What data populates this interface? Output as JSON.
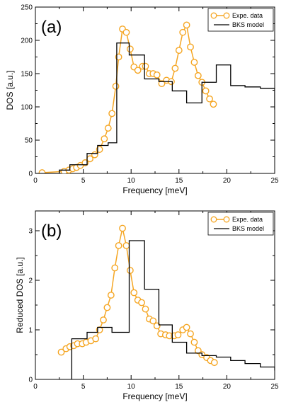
{
  "colors": {
    "expe": "#f5a623",
    "bks": "#000000"
  },
  "chart_data": [
    {
      "type": "line",
      "panel_label": "(a)",
      "xlabel": "Frequency [meV]",
      "ylabel": "DOS [a.u.]",
      "xlim": [
        0,
        25
      ],
      "ylim": [
        0,
        250
      ],
      "xticks": [
        0,
        5,
        10,
        15,
        20,
        25
      ],
      "yticks": [
        0,
        50,
        100,
        150,
        200,
        250
      ],
      "legend": {
        "position": "top-right",
        "entries": [
          "Expe. data",
          "BKS model"
        ]
      },
      "series": [
        {
          "name": "Expe. data",
          "style": "line-circles",
          "x": [
            0.7,
            3.0,
            3.5,
            3.9,
            4.3,
            4.7,
            5.2,
            5.7,
            6.2,
            6.7,
            7.2,
            7.6,
            8.0,
            8.4,
            8.7,
            9.1,
            9.5,
            9.9,
            10.3,
            10.7,
            11.2,
            11.5,
            11.9,
            12.3,
            12.7,
            13.2,
            13.7,
            14.2,
            14.6,
            15.0,
            15.4,
            15.8,
            16.2,
            16.6,
            17.0,
            17.4,
            17.8,
            18.2,
            18.6
          ],
          "y": [
            1,
            3,
            5,
            7,
            9,
            12,
            16,
            22,
            28,
            36,
            52,
            68,
            90,
            131,
            175,
            217,
            212,
            187,
            160,
            155,
            161,
            161,
            150,
            150,
            148,
            135,
            140,
            138,
            158,
            185,
            212,
            223,
            190,
            167,
            147,
            137,
            124,
            112,
            104
          ]
        },
        {
          "name": "BKS model",
          "style": "step",
          "edges": [
            0,
            2.5,
            3.6,
            5.4,
            6.5,
            7.6,
            8.5,
            9.8,
            11.4,
            12.9,
            14.3,
            15.8,
            17.4,
            18.9,
            20.4,
            21.9,
            23.5,
            25
          ],
          "values": [
            0,
            5,
            13,
            30,
            42,
            46,
            196,
            178,
            142,
            138,
            124,
            106,
            137,
            163,
            132,
            130,
            128,
            96
          ]
        }
      ]
    },
    {
      "type": "line",
      "panel_label": "(b)",
      "xlabel": "Frequency [meV]",
      "ylabel": "Reduced DOS [a.u.]",
      "xlim": [
        0,
        25
      ],
      "ylim": [
        0,
        3.4
      ],
      "xticks": [
        0,
        5,
        10,
        15,
        20,
        25
      ],
      "yticks": [
        0,
        1,
        2,
        3
      ],
      "legend": {
        "position": "top-right",
        "entries": [
          "Expe. data",
          "BKS model"
        ]
      },
      "series": [
        {
          "name": "Expe. data",
          "style": "line-circles",
          "x": [
            2.7,
            3.2,
            3.6,
            4.0,
            4.4,
            4.9,
            5.3,
            5.8,
            6.3,
            6.7,
            7.1,
            7.5,
            7.9,
            8.3,
            8.7,
            9.1,
            9.5,
            9.9,
            10.3,
            10.7,
            11.1,
            11.5,
            11.9,
            12.3,
            12.7,
            13.1,
            13.6,
            14.0,
            14.5,
            14.9,
            15.4,
            15.8,
            16.2,
            16.6,
            17.0,
            17.4,
            17.9,
            18.3,
            18.7
          ],
          "y": [
            0.55,
            0.62,
            0.66,
            0.68,
            0.72,
            0.72,
            0.75,
            0.78,
            0.82,
            1.0,
            1.2,
            1.45,
            1.7,
            2.25,
            2.7,
            3.05,
            2.7,
            2.2,
            1.75,
            1.6,
            1.55,
            1.42,
            1.22,
            1.18,
            1.08,
            0.92,
            0.9,
            0.88,
            0.88,
            0.9,
            1.0,
            1.05,
            0.92,
            0.75,
            0.58,
            0.5,
            0.44,
            0.38,
            0.34
          ]
        },
        {
          "name": "BKS model",
          "style": "step",
          "edges": [
            3.8,
            5.4,
            6.5,
            8.0,
            9.8,
            11.4,
            12.9,
            14.3,
            15.8,
            17.4,
            18.9,
            20.4,
            21.9,
            23.5,
            25
          ],
          "values": [
            0.82,
            0.95,
            1.05,
            0.95,
            2.8,
            1.82,
            1.1,
            0.75,
            0.53,
            0.48,
            0.45,
            0.38,
            0.32,
            0.25,
            0.18
          ]
        }
      ]
    }
  ]
}
